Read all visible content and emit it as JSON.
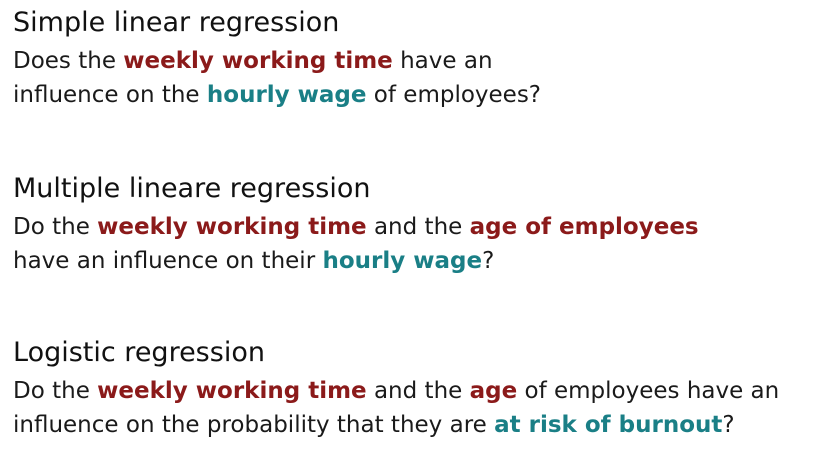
{
  "sections": [
    {
      "heading": "Simple linear regression",
      "lines": [
        [
          {
            "text": "Does the ",
            "style": "plain"
          },
          {
            "text": "weekly working time",
            "style": "red"
          },
          {
            "text": " have an",
            "style": "plain"
          }
        ],
        [
          {
            "text": "influence on the ",
            "style": "plain"
          },
          {
            "text": "hourly wage",
            "style": "teal"
          },
          {
            "text": " of employees?",
            "style": "plain"
          }
        ]
      ]
    },
    {
      "heading": "Multiple lineare regression",
      "lines": [
        [
          {
            "text": "Do the ",
            "style": "plain"
          },
          {
            "text": "weekly working time",
            "style": "red"
          },
          {
            "text": " and the ",
            "style": "plain"
          },
          {
            "text": "age of employees",
            "style": "red"
          }
        ],
        [
          {
            "text": "have an influence on their ",
            "style": "plain"
          },
          {
            "text": "hourly wage",
            "style": "teal"
          },
          {
            "text": "?",
            "style": "plain"
          }
        ]
      ]
    },
    {
      "heading": "Logistic regression",
      "lines": [
        [
          {
            "text": "Do the ",
            "style": "plain"
          },
          {
            "text": "weekly working time",
            "style": "red"
          },
          {
            "text": " and the ",
            "style": "plain"
          },
          {
            "text": "age",
            "style": "red"
          },
          {
            "text": " of employees have an",
            "style": "plain"
          }
        ],
        [
          {
            "text": "influence on the probability that they are ",
            "style": "plain"
          },
          {
            "text": "at risk of burnout",
            "style": "teal"
          },
          {
            "text": "?",
            "style": "plain"
          }
        ]
      ]
    }
  ],
  "colors": {
    "independent_variable": "#8b1a1a",
    "dependent_variable": "#1a7f86"
  }
}
